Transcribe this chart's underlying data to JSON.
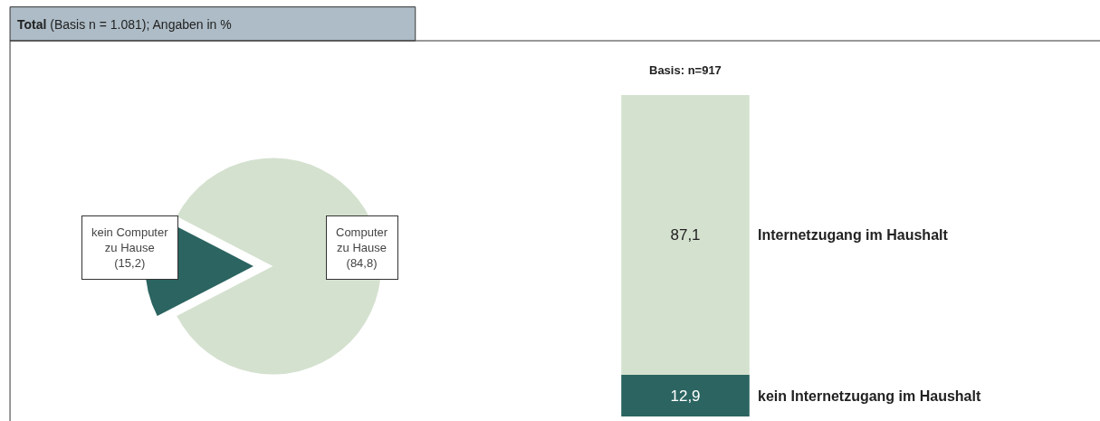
{
  "chart_data": [
    {
      "type": "pie",
      "title": "Total (Basis n = 1.081); Angaben in %",
      "categories": [
        "kein Computer zu Hause",
        "Computer zu Hause"
      ],
      "values": [
        15.2,
        84.8
      ],
      "colors": [
        "#2b6461",
        "#d4e1cf"
      ],
      "value_labels": [
        "(15,2)",
        "(84,8)"
      ]
    },
    {
      "type": "bar",
      "subtitle": "Basis: n=917",
      "stacked": true,
      "categories": [
        null
      ],
      "tick_labels": false,
      "series": [
        {
          "name": "kein Internetzugang im Haushalt",
          "color": "#2b6461",
          "values": [
            12.9
          ],
          "value_labels": [
            "12,9"
          ]
        },
        {
          "name": "Internetzugang im Haushalt",
          "color": "#d4e1cf",
          "values": [
            87.1
          ],
          "value_labels": [
            "87,1"
          ]
        }
      ]
    }
  ]
}
